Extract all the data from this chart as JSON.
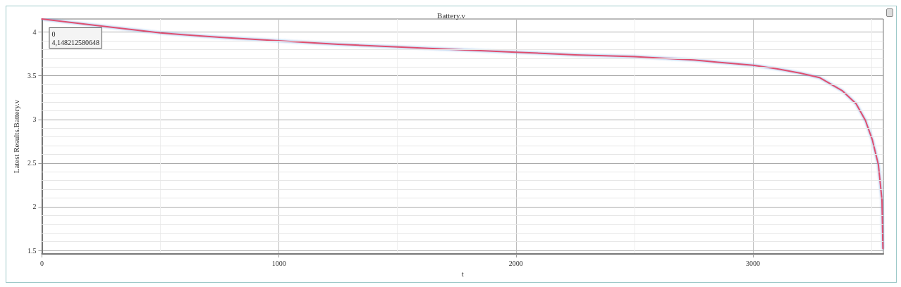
{
  "chart_data": {
    "type": "line",
    "title": "Battery.v",
    "xlabel": "t",
    "ylabel": "Latest Results.Battery.v",
    "x": [
      0,
      250,
      500,
      750,
      1000,
      1250,
      1500,
      1750,
      2000,
      2250,
      2500,
      2750,
      3000,
      3100,
      3200,
      3280,
      3376,
      3435,
      3474,
      3503,
      3529,
      3544,
      3548
    ],
    "series": [
      {
        "color": "#e0506e",
        "values": [
          4.15,
          4.07,
          3.99,
          3.94,
          3.9,
          3.86,
          3.83,
          3.8,
          3.77,
          3.74,
          3.72,
          3.68,
          3.62,
          3.58,
          3.53,
          3.48,
          3.33,
          3.18,
          2.99,
          2.77,
          2.48,
          2.08,
          1.52
        ]
      }
    ],
    "annotations": [
      {
        "text": "0\n4,148212580648",
        "x": 0,
        "y": 4.15
      }
    ],
    "xlim": [
      0,
      3550
    ],
    "xticks": [
      0,
      1000,
      2000,
      3000
    ],
    "ylim": [
      1.46,
      4.15
    ],
    "yticks": [
      1.5,
      2,
      2.5,
      3,
      3.5,
      4
    ],
    "grid": true,
    "marker": "none",
    "line_style": "solid"
  }
}
